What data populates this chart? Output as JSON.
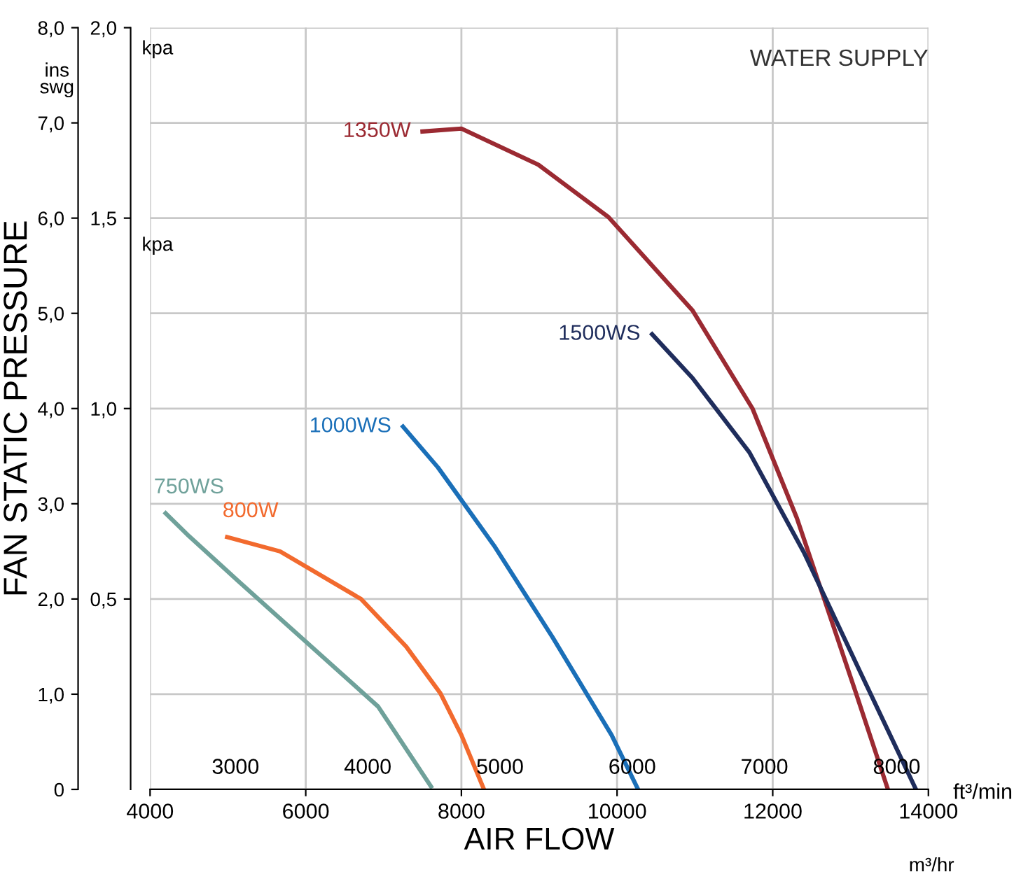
{
  "chart_data": {
    "type": "line",
    "title": "WATER SUPPLY",
    "xlabel": "AIR FLOW",
    "ylabel": "FAN STATIC PRESSURE",
    "x2label": "ft³/min",
    "annotations": [
      "ins\nswg",
      "kpa",
      "kpa",
      "m³/hr"
    ],
    "xlim": [
      4000,
      14000
    ],
    "xticks": [
      4000,
      6000,
      8000,
      10000,
      12000,
      14000
    ],
    "x2lim": [
      2354,
      8240
    ],
    "x2ticks": [
      3000,
      4000,
      5000,
      6000,
      7000,
      8000
    ],
    "ylim": [
      0,
      8
    ],
    "yticks": [
      0,
      {
        "value": 1,
        "label": "1,0"
      },
      {
        "value": 2,
        "label": "2,0"
      },
      {
        "value": 3,
        "label": "3,0"
      },
      {
        "value": 4,
        "label": "4,0"
      },
      {
        "value": 5,
        "label": "5,0"
      },
      {
        "value": 6,
        "label": "6,0"
      },
      {
        "value": 7,
        "label": "7,0"
      },
      {
        "value": 8,
        "label": "8,0"
      }
    ],
    "y2lim": [
      0,
      2.0
    ],
    "y2ticks": [
      {
        "value": 0.5,
        "label": "0,5"
      },
      {
        "value": 1.0,
        "label": "1,0"
      },
      {
        "value": 1.5,
        "label": "1,5"
      },
      {
        "value": 2.0,
        "label": "2,0"
      }
    ],
    "grid": true,
    "legend": false,
    "marker": "none",
    "line_style": "solid",
    "series": [
      {
        "name": "750WS",
        "color": "#6fa19a",
        "x": [
          4200,
          4500,
          5130,
          6030,
          6930,
          7610
        ],
        "values": [
          2.9,
          2.66,
          2.19,
          1.53,
          0.87,
          0.03
        ]
      },
      {
        "name": "800W",
        "color": "#f26a2e",
        "x": [
          4990,
          5670,
          6710,
          7290,
          7730,
          8000,
          8290
        ],
        "values": [
          2.65,
          2.5,
          2.0,
          1.5,
          1.01,
          0.57,
          0
        ]
      },
      {
        "name": "1000WS",
        "color": "#1a6fb8",
        "x": [
          7250,
          7700,
          8420,
          9170,
          9930,
          10270
        ],
        "values": [
          3.81,
          3.38,
          2.56,
          1.6,
          0.57,
          0
        ]
      },
      {
        "name": "1350W",
        "color": "#9b2a32",
        "x": [
          7500,
          8000,
          8990,
          9890,
          10970,
          11740,
          12310,
          13070,
          13480
        ],
        "values": [
          6.91,
          6.94,
          6.56,
          6.01,
          5.03,
          4.0,
          2.85,
          1.01,
          0
        ]
      },
      {
        "name": "1500WS",
        "color": "#1f2d5c",
        "x": [
          10450,
          10970,
          11700,
          12400,
          13120,
          13840
        ],
        "values": [
          4.78,
          4.32,
          3.54,
          2.49,
          1.24,
          0
        ]
      }
    ]
  }
}
